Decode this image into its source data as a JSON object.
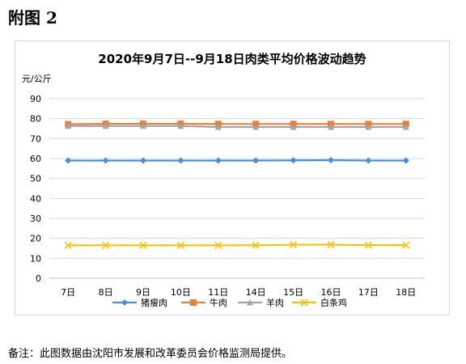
{
  "figure_label": "附图 2",
  "note": "备注：此图数据由沈阳市发展和改革委员会价格监测局提供。",
  "chart_data": {
    "type": "line",
    "title": "2020年9月7日--9月18日肉类平均价格波动趋势",
    "ylabel": "元/公斤",
    "xlabel": "",
    "categories": [
      "7日",
      "8日",
      "9日",
      "10日",
      "11日",
      "14日",
      "15日",
      "16日",
      "17日",
      "18日"
    ],
    "ylim": [
      0,
      90
    ],
    "yticks": [
      0,
      10,
      20,
      30,
      40,
      50,
      60,
      70,
      80,
      90
    ],
    "grid": true,
    "legend_position": "bottom",
    "series": [
      {
        "name": "猪瘦肉",
        "color": "#4a8fd4",
        "marker": "diamond",
        "values": [
          59,
          59,
          59,
          59,
          59,
          59,
          59.1,
          59.2,
          59,
          59
        ]
      },
      {
        "name": "牛肉",
        "color": "#e8803c",
        "marker": "square",
        "values": [
          77.2,
          77.4,
          77.4,
          77.4,
          77.3,
          77.3,
          77.3,
          77.3,
          77.3,
          77.3
        ]
      },
      {
        "name": "羊肉",
        "color": "#a5a5a5",
        "marker": "triangle",
        "values": [
          76.3,
          76.3,
          76.3,
          76.3,
          75.8,
          75.8,
          75.8,
          75.8,
          75.8,
          75.8
        ]
      },
      {
        "name": "白条鸡",
        "color": "#f5c400",
        "marker": "x",
        "values": [
          16.5,
          16.5,
          16.5,
          16.5,
          16.5,
          16.5,
          16.8,
          16.8,
          16.6,
          16.6
        ]
      }
    ]
  }
}
